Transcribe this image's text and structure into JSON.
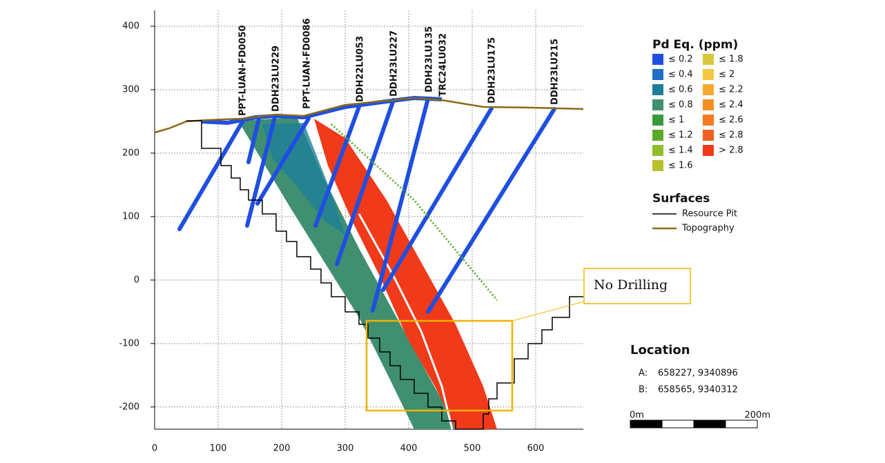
{
  "axes": {
    "xlim": [
      0,
      675
    ],
    "ylim": [
      -235,
      425
    ],
    "xticks": [
      0,
      100,
      200,
      300,
      400,
      500,
      600
    ],
    "yticks": [
      -200,
      -100,
      0,
      100,
      200,
      300,
      400
    ]
  },
  "drill_holes": [
    "PPT-LUAN-FD0050",
    "DDH23LU229",
    "PPT-LUAN-FD0086",
    "DDH22LU053",
    "DDH23LU227",
    "DDH23LU135",
    "TRC24LU032",
    "DDH23LU175",
    "DDH23LU215"
  ],
  "legend": {
    "title": "Pd Eq. (ppm)",
    "items": [
      {
        "label": "≤ 0.2",
        "color": "#1f4fe0"
      },
      {
        "label": "≤ 0.4",
        "color": "#1f6fc8"
      },
      {
        "label": "≤ 0.6",
        "color": "#1f7f9a"
      },
      {
        "label": "≤ 0.8",
        "color": "#3f8f70"
      },
      {
        "label": "≤ 1",
        "color": "#3a9a3a"
      },
      {
        "label": "≤ 1.2",
        "color": "#5aaa2a"
      },
      {
        "label": "≤ 1.4",
        "color": "#8cbf2a"
      },
      {
        "label": "≤ 1.6",
        "color": "#b8c030"
      },
      {
        "label": "≤ 1.8",
        "color": "#d8c83a"
      },
      {
        "label": "≤ 2",
        "color": "#f5c842"
      },
      {
        "label": "≤ 2.2",
        "color": "#f5a830"
      },
      {
        "label": "≤ 2.4",
        "color": "#f59020"
      },
      {
        "label": "≤ 2.6",
        "color": "#f57a20"
      },
      {
        "label": "≤ 2.8",
        "color": "#f06020"
      },
      {
        "label": "> 2.8",
        "color": "#f03a1a"
      }
    ]
  },
  "surfaces": {
    "title": "Surfaces",
    "items": [
      {
        "label": "Resource Pit",
        "color": "#000000"
      },
      {
        "label": "Topography",
        "color": "#8b6914"
      }
    ]
  },
  "callout": "No Drilling",
  "location": {
    "title": "Location",
    "rows": [
      {
        "key": "A:",
        "value": "658227, 9340896"
      },
      {
        "key": "B:",
        "value": "658565, 9340312"
      }
    ]
  },
  "scale_bar": {
    "start": "0m",
    "end": "200m"
  }
}
